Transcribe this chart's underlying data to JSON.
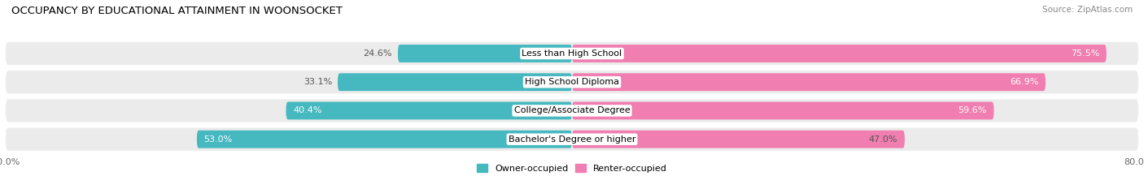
{
  "title": "OCCUPANCY BY EDUCATIONAL ATTAINMENT IN WOONSOCKET",
  "source": "Source: ZipAtlas.com",
  "categories": [
    "Less than High School",
    "High School Diploma",
    "College/Associate Degree",
    "Bachelor's Degree or higher"
  ],
  "owner_values": [
    24.6,
    33.1,
    40.4,
    53.0
  ],
  "renter_values": [
    75.5,
    66.9,
    59.6,
    47.0
  ],
  "owner_color": "#45B8C0",
  "renter_color": "#F07EB0",
  "background_color": "#FFFFFF",
  "row_bg_color": "#EBEBEB",
  "xlim": 80.0,
  "bar_height": 0.62,
  "title_fontsize": 9.5,
  "label_fontsize": 8.0,
  "value_fontsize": 8.0,
  "tick_fontsize": 8,
  "source_fontsize": 7.5,
  "owner_label_color_inside": "white",
  "owner_label_color_outside": "#555555",
  "renter_label_color_inside": "white",
  "renter_label_color_outside": "#555555",
  "owner_inside_threshold": 35,
  "renter_inside_threshold": 10
}
